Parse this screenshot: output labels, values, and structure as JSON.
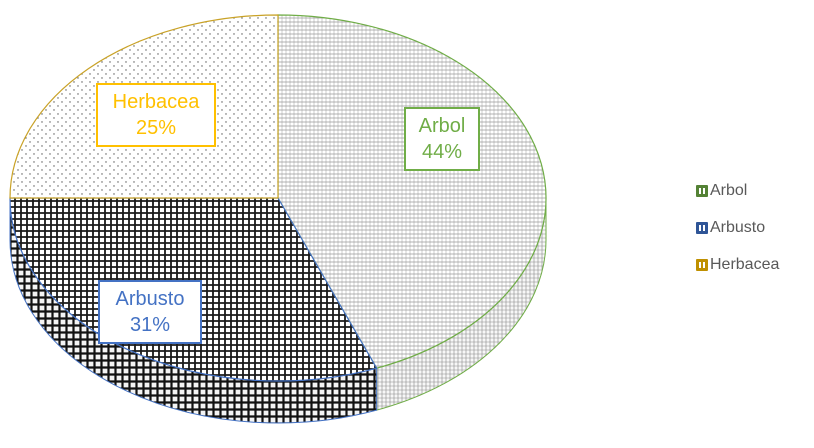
{
  "chart_data": {
    "type": "pie",
    "style": "3d-pie",
    "categories": [
      "Arbol",
      "Arbusto",
      "Herbacea"
    ],
    "values": [
      44,
      31,
      25
    ],
    "value_labels": [
      "44%",
      "31%",
      "25%"
    ],
    "colors": [
      "#70AD47",
      "#4472C4",
      "#C9A227"
    ],
    "label_colors": [
      "#70AD47",
      "#4472C4",
      "#FFC000"
    ],
    "title": "",
    "legend_position": "right"
  },
  "legend": {
    "items": [
      {
        "label": "Arbol",
        "color": "#548235"
      },
      {
        "label": "Arbusto",
        "color": "#2F5597"
      },
      {
        "label": "Herbacea",
        "color": "#BF9000"
      }
    ]
  },
  "labels": [
    {
      "name": "Arbol",
      "value": "44%"
    },
    {
      "name": "Arbusto",
      "value": "31%"
    },
    {
      "name": "Herbacea",
      "value": "25%"
    }
  ]
}
